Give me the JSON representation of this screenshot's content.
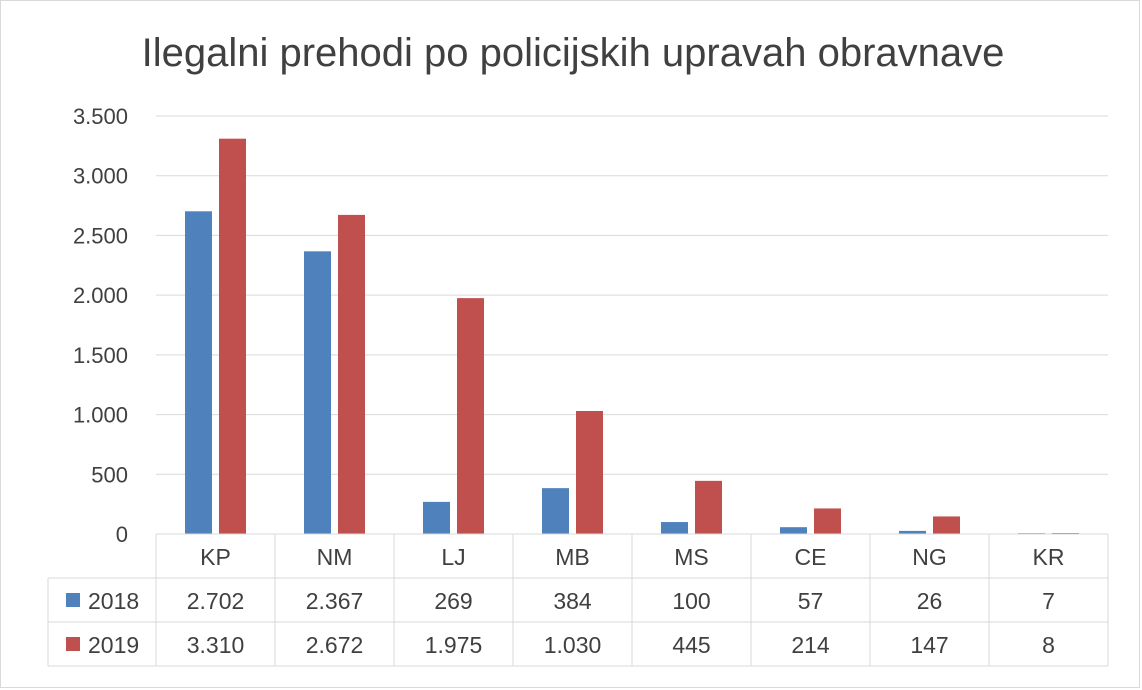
{
  "colors": {
    "s2018": "#4f81bd",
    "s2019": "#c0504d",
    "grid": "#d9d9d9",
    "text": "#404040"
  },
  "chart_data": {
    "type": "bar",
    "title": "Ilegalni prehodi po policijskih upravah obravnave",
    "categories": [
      "KP",
      "NM",
      "LJ",
      "MB",
      "MS",
      "CE",
      "NG",
      "KR"
    ],
    "series": [
      {
        "name": "2018",
        "values": [
          2702,
          2367,
          269,
          384,
          100,
          57,
          26,
          7
        ],
        "labels": [
          "2.702",
          "2.367",
          "269",
          "384",
          "100",
          "57",
          "26",
          "7"
        ]
      },
      {
        "name": "2019",
        "values": [
          3310,
          2672,
          1975,
          1030,
          445,
          214,
          147,
          8
        ],
        "labels": [
          "3.310",
          "2.672",
          "1.975",
          "1.030",
          "445",
          "214",
          "147",
          "8"
        ]
      }
    ],
    "y_ticks": [
      0,
      500,
      1000,
      1500,
      2000,
      2500,
      3000,
      3500
    ],
    "y_tick_labels": [
      "0",
      "500",
      "1.000",
      "1.500",
      "2.000",
      "2.500",
      "3.000",
      "3.500"
    ],
    "ylim": [
      0,
      3500
    ],
    "grid": true,
    "legend": "data table below chart"
  }
}
